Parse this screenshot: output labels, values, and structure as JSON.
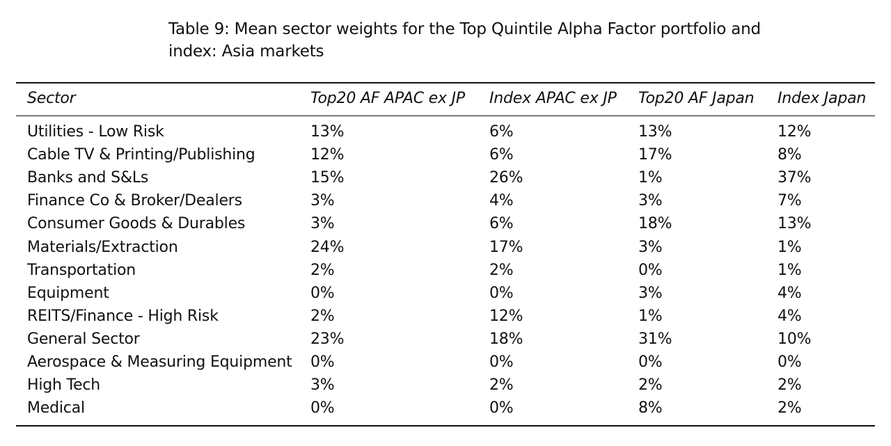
{
  "caption": {
    "line1": "Table 9:  Mean sector weights for the Top Quintile Alpha Factor portfolio and",
    "line2": "index:  Asia markets"
  },
  "table": {
    "headers": [
      "Sector",
      "Top20 AF APAC ex JP",
      "Index APAC ex JP",
      "Top20 AF Japan",
      "Index Japan"
    ],
    "rows": [
      [
        "Utilities - Low Risk",
        "13%",
        "6%",
        "13%",
        "12%"
      ],
      [
        "Cable TV & Printing/Publishing",
        "12%",
        "6%",
        "17%",
        "8%"
      ],
      [
        "Banks and S&Ls",
        "15%",
        "26%",
        "1%",
        "37%"
      ],
      [
        "Finance Co & Broker/Dealers",
        "3%",
        "4%",
        "3%",
        "7%"
      ],
      [
        "Consumer Goods & Durables",
        "3%",
        "6%",
        "18%",
        "13%"
      ],
      [
        "Materials/Extraction",
        "24%",
        "17%",
        "3%",
        "1%"
      ],
      [
        "Transportation",
        "2%",
        "2%",
        "0%",
        "1%"
      ],
      [
        "Equipment",
        "0%",
        "0%",
        "3%",
        "4%"
      ],
      [
        "REITS/Finance - High Risk",
        "2%",
        "12%",
        "1%",
        "4%"
      ],
      [
        "General Sector",
        "23%",
        "18%",
        "31%",
        "10%"
      ],
      [
        "Aerospace & Measuring Equipment",
        "0%",
        "0%",
        "0%",
        "0%"
      ],
      [
        "High Tech",
        "3%",
        "2%",
        "2%",
        "2%"
      ],
      [
        "Medical",
        "0%",
        "0%",
        "8%",
        "2%"
      ]
    ]
  }
}
